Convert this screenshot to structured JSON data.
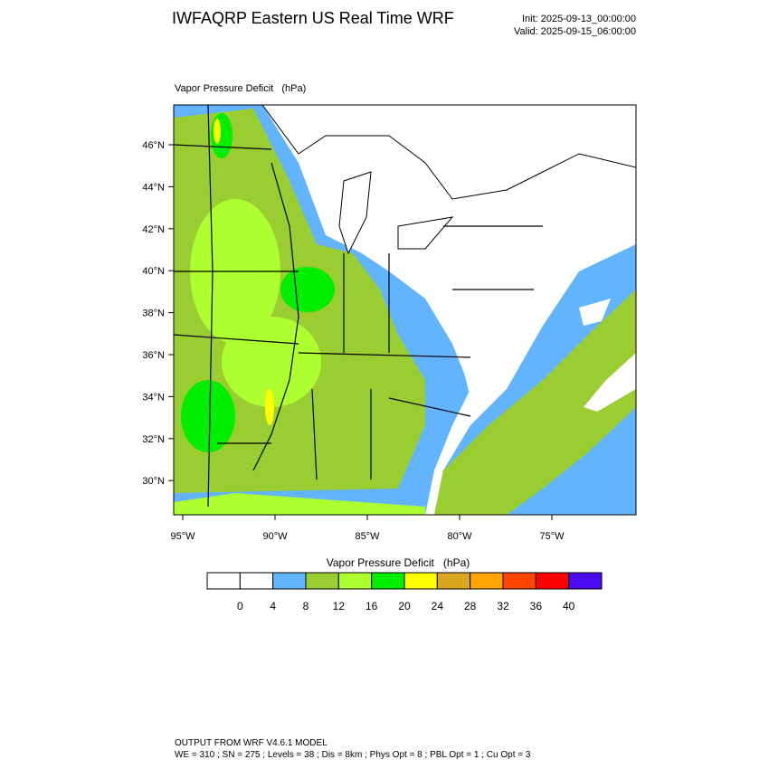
{
  "header": {
    "title": "IWFAQRP Eastern US Real Time WRF",
    "init": "Init: 2025-09-13_00:00:00",
    "valid": "Valid: 2025-09-15_06:00:00"
  },
  "map": {
    "title": "Vapor Pressure Deficit   (hPa)",
    "lat_labels": [
      "46°N",
      "44°N",
      "42°N",
      "40°N",
      "38°N",
      "36°N",
      "34°N",
      "32°N",
      "30°N"
    ],
    "lon_labels": [
      "95°W",
      "90°W",
      "85°W",
      "80°W",
      "75°W"
    ]
  },
  "colorbar": {
    "title": "Vapor Pressure Deficit   (hPa)",
    "colors": [
      "#ffffff",
      "#ffffff",
      "#62b4ff",
      "#9acd32",
      "#adff2f",
      "#00ee00",
      "#ffff00",
      "#daa520",
      "#ffa500",
      "#ff4500",
      "#ff0000",
      "#4b0bf0"
    ],
    "levels": [
      0,
      4,
      8,
      12,
      16,
      20,
      24,
      28,
      32,
      36,
      40
    ]
  },
  "footer": {
    "line1": "OUTPUT FROM WRF V4.6.1 MODEL",
    "line2": "WE = 310 ; SN = 275 ; Levels = 38 ; Dis = 8km ; Phys Opt = 8 ; PBL Opt = 1 ; Cu Opt = 3"
  }
}
